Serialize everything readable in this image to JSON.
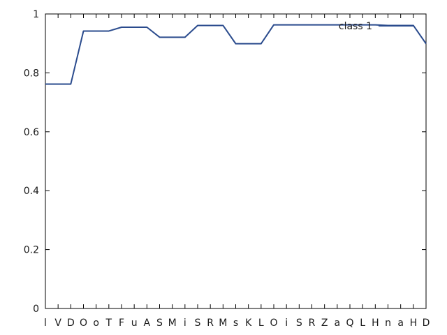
{
  "chart_data": {
    "type": "line",
    "categories": [
      "l",
      "V",
      "D",
      "O",
      "o",
      "T",
      "F",
      "u",
      "A",
      "S",
      "M",
      "i",
      "S",
      "R",
      "M",
      "s",
      "K",
      "L",
      "O",
      "i",
      "S",
      "R",
      "Z",
      "a",
      "Q",
      "L",
      "H",
      "n",
      "a",
      "H",
      "D"
    ],
    "series": [
      {
        "name": "class 1",
        "values": [
          0.762,
          0.762,
          0.762,
          0.942,
          0.942,
          0.942,
          0.955,
          0.955,
          0.955,
          0.921,
          0.921,
          0.921,
          0.961,
          0.961,
          0.961,
          0.899,
          0.899,
          0.899,
          0.963,
          0.963,
          0.963,
          0.963,
          0.963,
          0.963,
          0.963,
          0.963,
          0.963,
          0.961,
          0.961,
          0.961,
          0.899
        ],
        "color": "#2a4b8d"
      }
    ],
    "ylim": [
      0,
      1
    ],
    "yticks": [
      "0",
      "0.2",
      "0.4",
      "0.6",
      "0.8",
      "1"
    ],
    "ytick_values": [
      0,
      0.2,
      0.4,
      0.6,
      0.8,
      1
    ],
    "legend_position": "top-right",
    "grid": false
  }
}
